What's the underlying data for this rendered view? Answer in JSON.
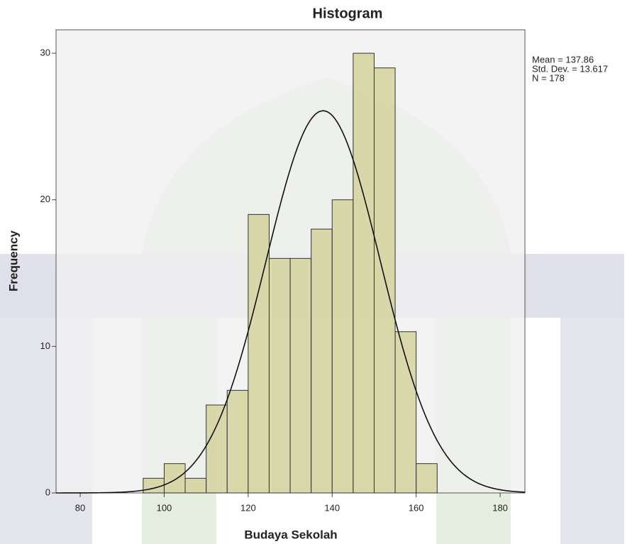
{
  "chart_data": {
    "type": "histogram",
    "title": "Histogram",
    "x_label": "Budaya Sekolah",
    "y_label": "Frequency",
    "bins": [
      95,
      100,
      105,
      110,
      115,
      120,
      125,
      130,
      135,
      140,
      145,
      150,
      155,
      160,
      165
    ],
    "values": [
      1,
      2,
      1,
      6,
      7,
      19,
      16,
      16,
      18,
      20,
      30,
      29,
      11,
      2
    ],
    "color": "#d3d29d",
    "xlim": [
      74.25,
      185.9
    ],
    "xticks": [
      80,
      100,
      120,
      140,
      160,
      180
    ],
    "ylim": [
      0,
      31.6
    ],
    "yticks": [
      0,
      10,
      20,
      30
    ],
    "normal_curve": {
      "mean": 137.86,
      "sd": 13.617,
      "n": 178
    },
    "annotations": [
      "Mean = 137.86",
      "Std. Dev. = 13.617",
      "N = 178"
    ]
  }
}
